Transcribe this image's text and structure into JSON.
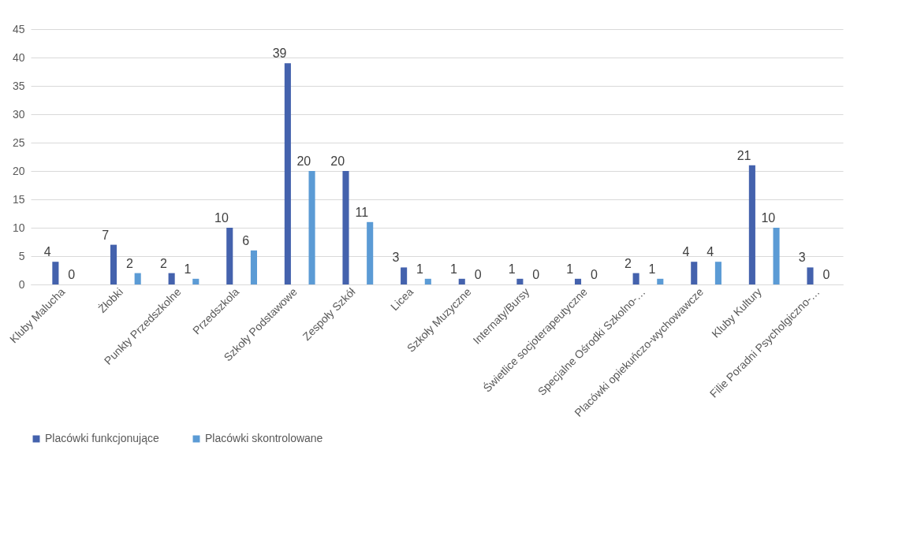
{
  "chart_data": {
    "type": "bar",
    "categories": [
      "Kluby Malucha",
      "Żłobki",
      "Punkty Przedszkolne",
      "Przedszkola",
      "Szkoły Podstawowe",
      "Zespoły Szkół",
      "Licea",
      "Szkoły Muzyczne",
      "Internaty/Bursy",
      "Świetlice socjoterapeutyczne",
      "Specjalne Ośrodki Szkolno-…",
      "Placówki opiekuńczo-wychowawcze",
      "Kluby Kultury",
      "Filie Poradni Psycholgiczno-…"
    ],
    "series": [
      {
        "name": "Placówki funkcjonujące",
        "color": "#4462ad",
        "values": [
          4,
          7,
          2,
          10,
          39,
          20,
          3,
          1,
          1,
          1,
          2,
          4,
          21,
          3
        ]
      },
      {
        "name": "Placówki skontrolowane",
        "color": "#5b9bd5",
        "values": [
          0,
          2,
          1,
          6,
          20,
          11,
          1,
          0,
          0,
          0,
          1,
          4,
          10,
          0
        ]
      }
    ],
    "ylim": [
      0,
      45
    ],
    "yticks": [
      0,
      5,
      10,
      15,
      20,
      25,
      30,
      35,
      40,
      45
    ],
    "grid": "y",
    "legend": "bottom",
    "data_labels": true
  }
}
